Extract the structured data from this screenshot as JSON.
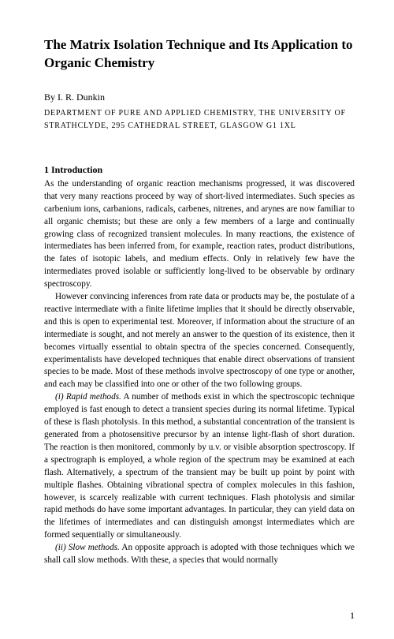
{
  "title": "The Matrix Isolation Technique and Its Application to Organic Chemistry",
  "author_prefix": "By ",
  "author": "I. R. Dunkin",
  "affiliation": "DEPARTMENT OF PURE AND APPLIED CHEMISTRY, THE UNIVERSITY OF STRATHCLYDE, 295 CATHEDRAL STREET, GLASGOW G1 1XL",
  "section_heading": "1 Introduction",
  "para1": "As the understanding of organic reaction mechanisms progressed, it was discovered that very many reactions proceed by way of short-lived intermediates. Such species as carbenium ions, carbanions, radicals, carbenes, nitrenes, and arynes are now familiar to all organic chemists; but these are only a few members of a large and continually growing class of recognized transient molecules. In many reactions, the existence of intermediates has been inferred from, for example, reaction rates, product distributions, the fates of isotopic labels, and medium effects. Only in relatively few have the intermediates proved isolable or sufficiently long-lived to be observable by ordinary spectroscopy.",
  "para2": "However convincing inferences from rate data or products may be, the postulate of a reactive intermediate with a finite lifetime implies that it should be directly observable, and this is open to experimental test. Moreover, if information about the structure of an intermediate is sought, and not merely an answer to the question of its existence, then it becomes virtually essential to obtain spectra of the species concerned. Consequently, experimentalists have developed techniques that enable direct observations of transient species to be made. Most of these methods involve spectroscopy of one type or another, and each may be classified into one or other of the two following groups.",
  "para3_label": "(i) Rapid methods.",
  "para3": " A number of methods exist in which the spectroscopic technique employed is fast enough to detect a transient species during its normal lifetime. Typical of these is flash photolysis. In this method, a substantial concentration of the transient is generated from a photosensitive precursor by an intense light-flash of short duration. The reaction is then monitored, commonly by u.v. or visible absorption spectroscopy. If a spectrograph is employed, a whole region of the spectrum may be examined at each flash. Alternatively, a spectrum of the transient may be built up point by point with multiple flashes. Obtaining vibrational spectra of complex molecules in this fashion, however, is scarcely realizable with current techniques. Flash photolysis and similar rapid methods do have some important advantages. In particular, they can yield data on the lifetimes of intermediates and can distinguish amongst intermediates which are formed sequentially or simultaneously.",
  "para4_label": "(ii) Slow methods.",
  "para4": " An opposite approach is adopted with those techniques which we shall call slow methods. With these, a species that would normally",
  "page_number": "1"
}
